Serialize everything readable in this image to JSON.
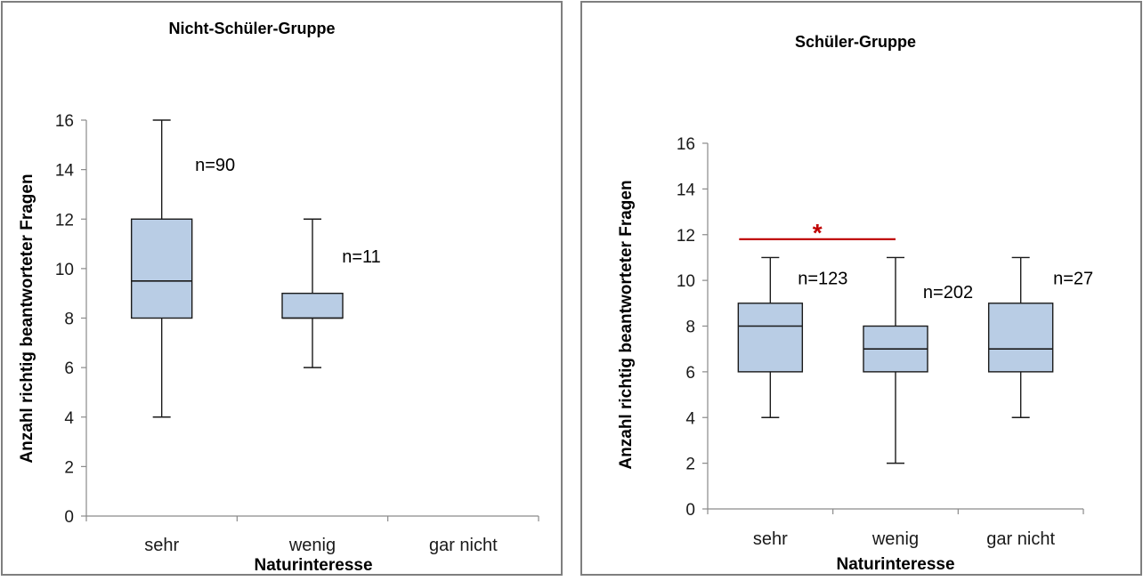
{
  "chart_data": [
    {
      "type": "boxplot",
      "title": "Nicht-Schüler-Gruppe",
      "xlabel": "Naturinteresse",
      "ylabel": "Anzahl richtig beantworteter Fragen",
      "ylim": [
        0,
        16
      ],
      "yticks": [
        "0",
        "2",
        "4",
        "6",
        "8",
        "10",
        "12",
        "14",
        "16"
      ],
      "categories": [
        "sehr",
        "wenig",
        "gar nicht"
      ],
      "boxes": [
        {
          "category": "sehr",
          "min": 4,
          "q1": 8,
          "median": 9.5,
          "q3": 12,
          "max": 16,
          "n_label": "n=90"
        },
        {
          "category": "wenig",
          "min": 6,
          "q1": 8,
          "median": 8,
          "q3": 9,
          "max": 12,
          "n_label": "n=11"
        },
        null
      ],
      "significance": null
    },
    {
      "type": "boxplot",
      "title": "Schüler-Gruppe",
      "xlabel": "Naturinteresse",
      "ylabel": "Anzahl richtig beantworteter Fragen",
      "ylim": [
        0,
        16
      ],
      "yticks": [
        "0",
        "2",
        "4",
        "6",
        "8",
        "10",
        "12",
        "14",
        "16"
      ],
      "categories": [
        "sehr",
        "wenig",
        "gar nicht"
      ],
      "boxes": [
        {
          "category": "sehr",
          "min": 4,
          "q1": 6,
          "median": 8,
          "q3": 9,
          "max": 11,
          "n_label": "n=123"
        },
        {
          "category": "wenig",
          "min": 2,
          "q1": 6,
          "median": 7,
          "q3": 8,
          "max": 11,
          "n_label": "n=202"
        },
        {
          "category": "gar nicht",
          "min": 4,
          "q1": 6,
          "median": 7,
          "q3": 9,
          "max": 11,
          "n_label": "n=27"
        }
      ],
      "significance": {
        "from": "sehr",
        "to": "wenig",
        "y": 11.8,
        "mark": "*",
        "color": "#c00000"
      }
    }
  ],
  "colors": {
    "box_fill": "#b9cde5",
    "significance": "#c00000"
  }
}
